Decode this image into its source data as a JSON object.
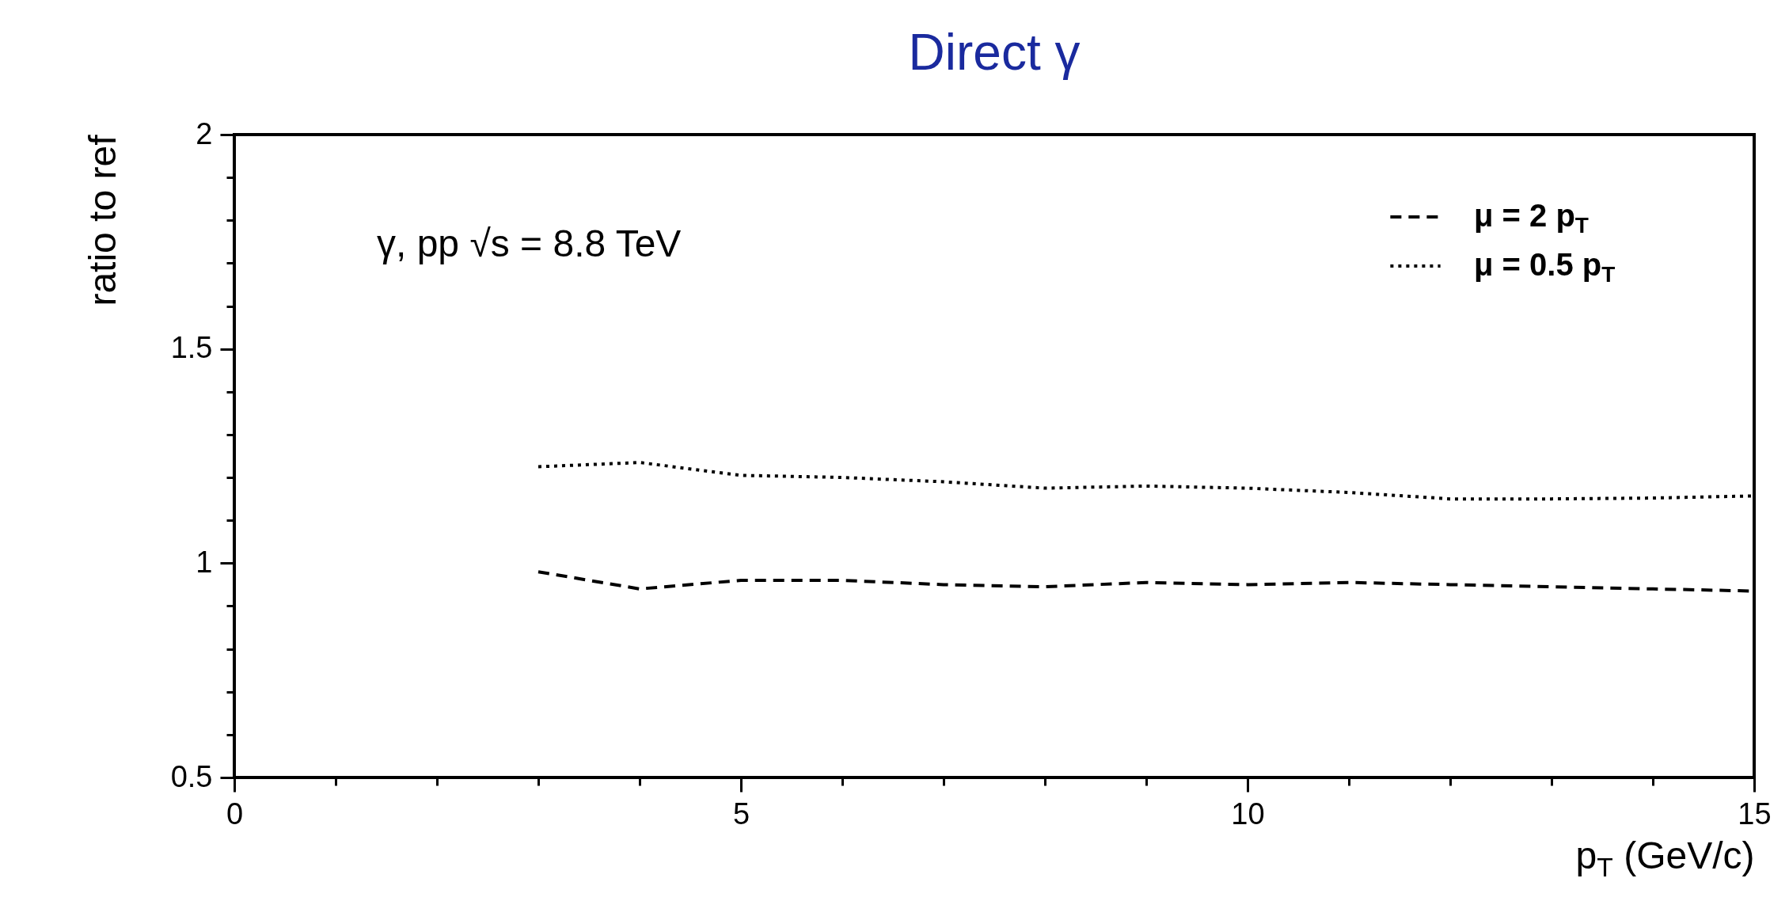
{
  "chart_data": {
    "type": "line",
    "title": "Direct γ",
    "xlabel": "p$_{T}$ (GeV/c)",
    "ylabel": "ratio to ref",
    "annotations": [
      "γ, pp √s = 8.8 TeV"
    ],
    "series": [
      {
        "name": "μ = 2 p$_{T}$",
        "color": "#000000",
        "line_style": "dashed",
        "x": [
          3,
          4,
          5,
          6,
          7,
          8,
          9,
          10,
          11,
          12,
          13,
          14,
          15
        ],
        "values": [
          0.98,
          0.94,
          0.96,
          0.96,
          0.95,
          0.945,
          0.955,
          0.95,
          0.955,
          0.95,
          0.945,
          0.94,
          0.935
        ]
      },
      {
        "name": "μ = 0.5 p$_{T}$",
        "color": "#000000",
        "line_style": "dotted",
        "x": [
          3,
          4,
          5,
          6,
          7,
          8,
          9,
          10,
          11,
          12,
          13,
          14,
          15
        ],
        "values": [
          1.225,
          1.235,
          1.205,
          1.2,
          1.19,
          1.175,
          1.18,
          1.175,
          1.165,
          1.15,
          1.15,
          1.152,
          1.157
        ]
      }
    ],
    "xlim": [
      0,
      15
    ],
    "ylim": [
      0.5,
      2
    ],
    "xticks": [
      0,
      {
        "value": 1,
        "label": null
      },
      {
        "value": 2,
        "label": null
      },
      {
        "value": 3,
        "label": null
      },
      {
        "value": 4,
        "label": null
      },
      5,
      {
        "value": 6,
        "label": null
      },
      {
        "value": 7,
        "label": null
      },
      {
        "value": 8,
        "label": null
      },
      {
        "value": 9,
        "label": null
      },
      10,
      {
        "value": 11,
        "label": null
      },
      {
        "value": 12,
        "label": null
      },
      {
        "value": 13,
        "label": null
      },
      {
        "value": 14,
        "label": null
      },
      15
    ],
    "yticks": [
      0.5,
      {
        "value": 0.6,
        "label": null
      },
      {
        "value": 0.7,
        "label": null
      },
      {
        "value": 0.8,
        "label": null
      },
      {
        "value": 0.9,
        "label": null
      },
      1,
      {
        "value": 1.1,
        "label": null
      },
      {
        "value": 1.2,
        "label": null
      },
      {
        "value": 1.3,
        "label": null
      },
      {
        "value": 1.4,
        "label": null
      },
      1.5,
      {
        "value": 1.6,
        "label": null
      },
      {
        "value": 1.7,
        "label": null
      },
      {
        "value": 1.8,
        "label": null
      },
      {
        "value": 1.9,
        "label": null
      },
      2
    ],
    "grid": false,
    "legend": "top right"
  }
}
